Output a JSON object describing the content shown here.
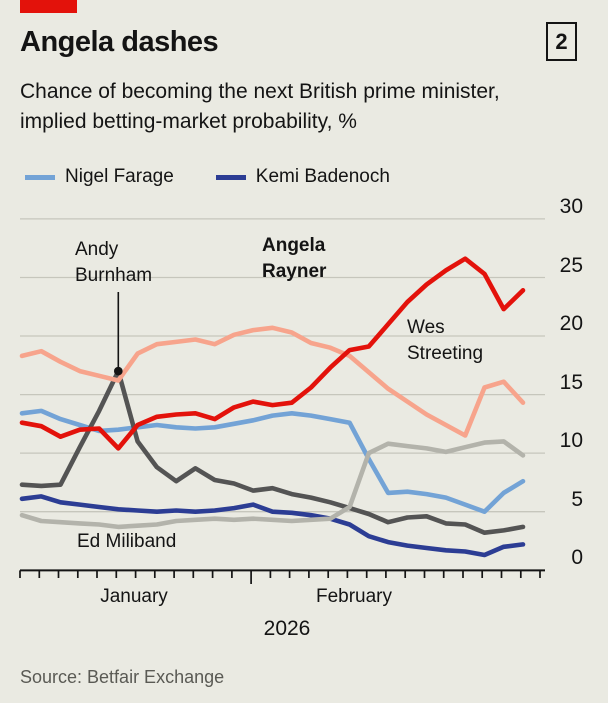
{
  "theme": {
    "background": "#eaeae2",
    "axis": "#141414",
    "gridline": "#c6c6bc",
    "brand_red": "#e3120b"
  },
  "header": {
    "title": "Angela dashes",
    "index_number": "2",
    "subtitle": "Chance of becoming the next British prime minister, implied betting-market probability, %"
  },
  "legend": [
    {
      "label": "Nigel Farage",
      "color": "#73a3d6"
    },
    {
      "label": "Kemi Badenoch",
      "color": "#2c3d94"
    }
  ],
  "annotations": {
    "burnham": "Andy Burnham",
    "rayner": "Angela Rayner",
    "streeting": "Wes Streeting",
    "miliband": "Ed Miliband"
  },
  "x_axis_labels": {
    "january": "January",
    "february": "February",
    "year": "2026"
  },
  "source": "Source: Betfair Exchange",
  "chart_data": {
    "type": "line",
    "title": "Angela dashes",
    "subtitle": "Chance of becoming the next British prime minister, implied betting-market probability, %",
    "ylabel": "%",
    "ylim": [
      0,
      30
    ],
    "x_axis": {
      "months": [
        "January",
        "February"
      ],
      "year": "2026",
      "tick_count": 28,
      "month_boundary_tick_index": 12,
      "points_per_series": 27
    },
    "y_axis": {
      "ticks": [
        30,
        25,
        20,
        15,
        10,
        5,
        0
      ],
      "gridlines": [
        30,
        25,
        20,
        15,
        10,
        5
      ]
    },
    "leader": {
      "target_series": "Andy Burnham",
      "point_index": 5
    },
    "series": [
      {
        "name": "Kemi Badenoch",
        "color": "#2c3d94",
        "values": [
          6.1,
          6.3,
          5.8,
          5.6,
          5.4,
          5.2,
          5.1,
          5.0,
          5.1,
          5.0,
          5.1,
          5.3,
          5.6,
          5.0,
          4.9,
          4.7,
          4.4,
          3.9,
          2.9,
          2.4,
          2.1,
          1.9,
          1.7,
          1.6,
          1.3,
          2.0,
          2.2
        ]
      },
      {
        "name": "Nigel Farage",
        "color": "#73a3d6",
        "values": [
          13.4,
          13.6,
          12.9,
          12.4,
          11.9,
          12.0,
          12.2,
          12.4,
          12.2,
          12.1,
          12.2,
          12.5,
          12.8,
          13.2,
          13.4,
          13.2,
          12.9,
          12.6,
          9.5,
          6.6,
          6.7,
          6.5,
          6.2,
          5.6,
          5.0,
          6.6,
          7.6
        ]
      },
      {
        "name": "Andy Burnham",
        "color": "#545454",
        "values": [
          7.3,
          7.2,
          7.3,
          10.5,
          13.6,
          17.0,
          11.0,
          8.8,
          7.6,
          8.7,
          7.7,
          7.4,
          6.8,
          7.0,
          6.5,
          6.2,
          5.8,
          5.3,
          4.8,
          4.1,
          4.5,
          4.6,
          4.0,
          3.9,
          3.2,
          3.4,
          3.7
        ]
      },
      {
        "name": "Ed Miliband",
        "color": "#b3b3ab",
        "values": [
          4.7,
          4.2,
          4.1,
          4.0,
          3.9,
          3.7,
          3.8,
          3.9,
          4.2,
          4.3,
          4.4,
          4.3,
          4.4,
          4.3,
          4.2,
          4.3,
          4.4,
          5.4,
          10.0,
          10.8,
          10.6,
          10.4,
          10.1,
          10.5,
          10.9,
          11.0,
          9.8
        ]
      },
      {
        "name": "Wes Streeting",
        "color": "#f7a48c",
        "values": [
          18.3,
          18.7,
          17.8,
          17.0,
          16.6,
          16.2,
          18.5,
          19.3,
          19.5,
          19.7,
          19.3,
          20.1,
          20.5,
          20.7,
          20.3,
          19.4,
          19.0,
          18.3,
          16.9,
          15.5,
          14.4,
          13.3,
          12.4,
          11.5,
          15.6,
          16.1,
          14.3
        ]
      },
      {
        "name": "Angela Rayner",
        "color": "#e3120b",
        "values": [
          12.6,
          12.3,
          11.4,
          12.0,
          12.1,
          10.4,
          12.4,
          13.1,
          13.3,
          13.4,
          12.9,
          13.9,
          14.4,
          14.1,
          14.3,
          15.6,
          17.3,
          18.8,
          19.1,
          21.0,
          22.9,
          24.4,
          25.6,
          26.6,
          25.3,
          22.3,
          23.9
        ]
      }
    ]
  }
}
